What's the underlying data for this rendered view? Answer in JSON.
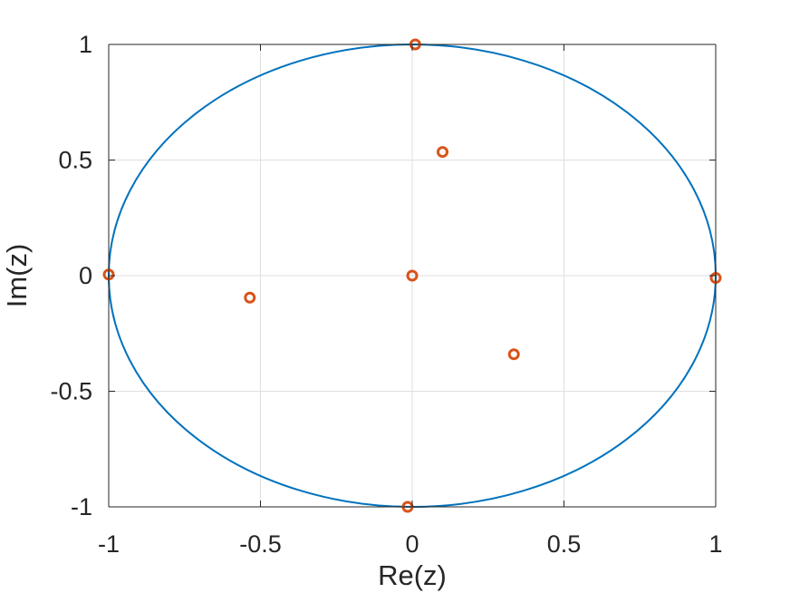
{
  "chart_data": {
    "type": "scatter",
    "xlabel": "Re(z)",
    "ylabel": "Im(z)",
    "xlim": [
      -1,
      1
    ],
    "ylim": [
      -1,
      1
    ],
    "xticks": [
      -1,
      -0.5,
      0,
      0.5,
      1
    ],
    "yticks": [
      -1,
      -0.5,
      0,
      0.5,
      1
    ],
    "xtick_labels": [
      "-1",
      "-0.5",
      "0",
      "0.5",
      "1"
    ],
    "ytick_labels": [
      "-1",
      "-0.5",
      "0",
      "0.5",
      "1"
    ],
    "grid": true,
    "box": true,
    "unit_circle": {
      "center": [
        0,
        0
      ],
      "radius": 1,
      "color": "#0072BD"
    },
    "series": [
      {
        "marker": "circle",
        "color": "#D95319",
        "points": [
          {
            "x": 0.01,
            "y": 1.0
          },
          {
            "x": 0.1,
            "y": 0.535
          },
          {
            "x": -1.0,
            "y": 0.005
          },
          {
            "x": 0.0,
            "y": 0.0
          },
          {
            "x": -0.535,
            "y": -0.095
          },
          {
            "x": 1.0,
            "y": -0.01
          },
          {
            "x": 0.335,
            "y": -0.34
          },
          {
            "x": -0.015,
            "y": -1.0
          }
        ]
      }
    ]
  }
}
